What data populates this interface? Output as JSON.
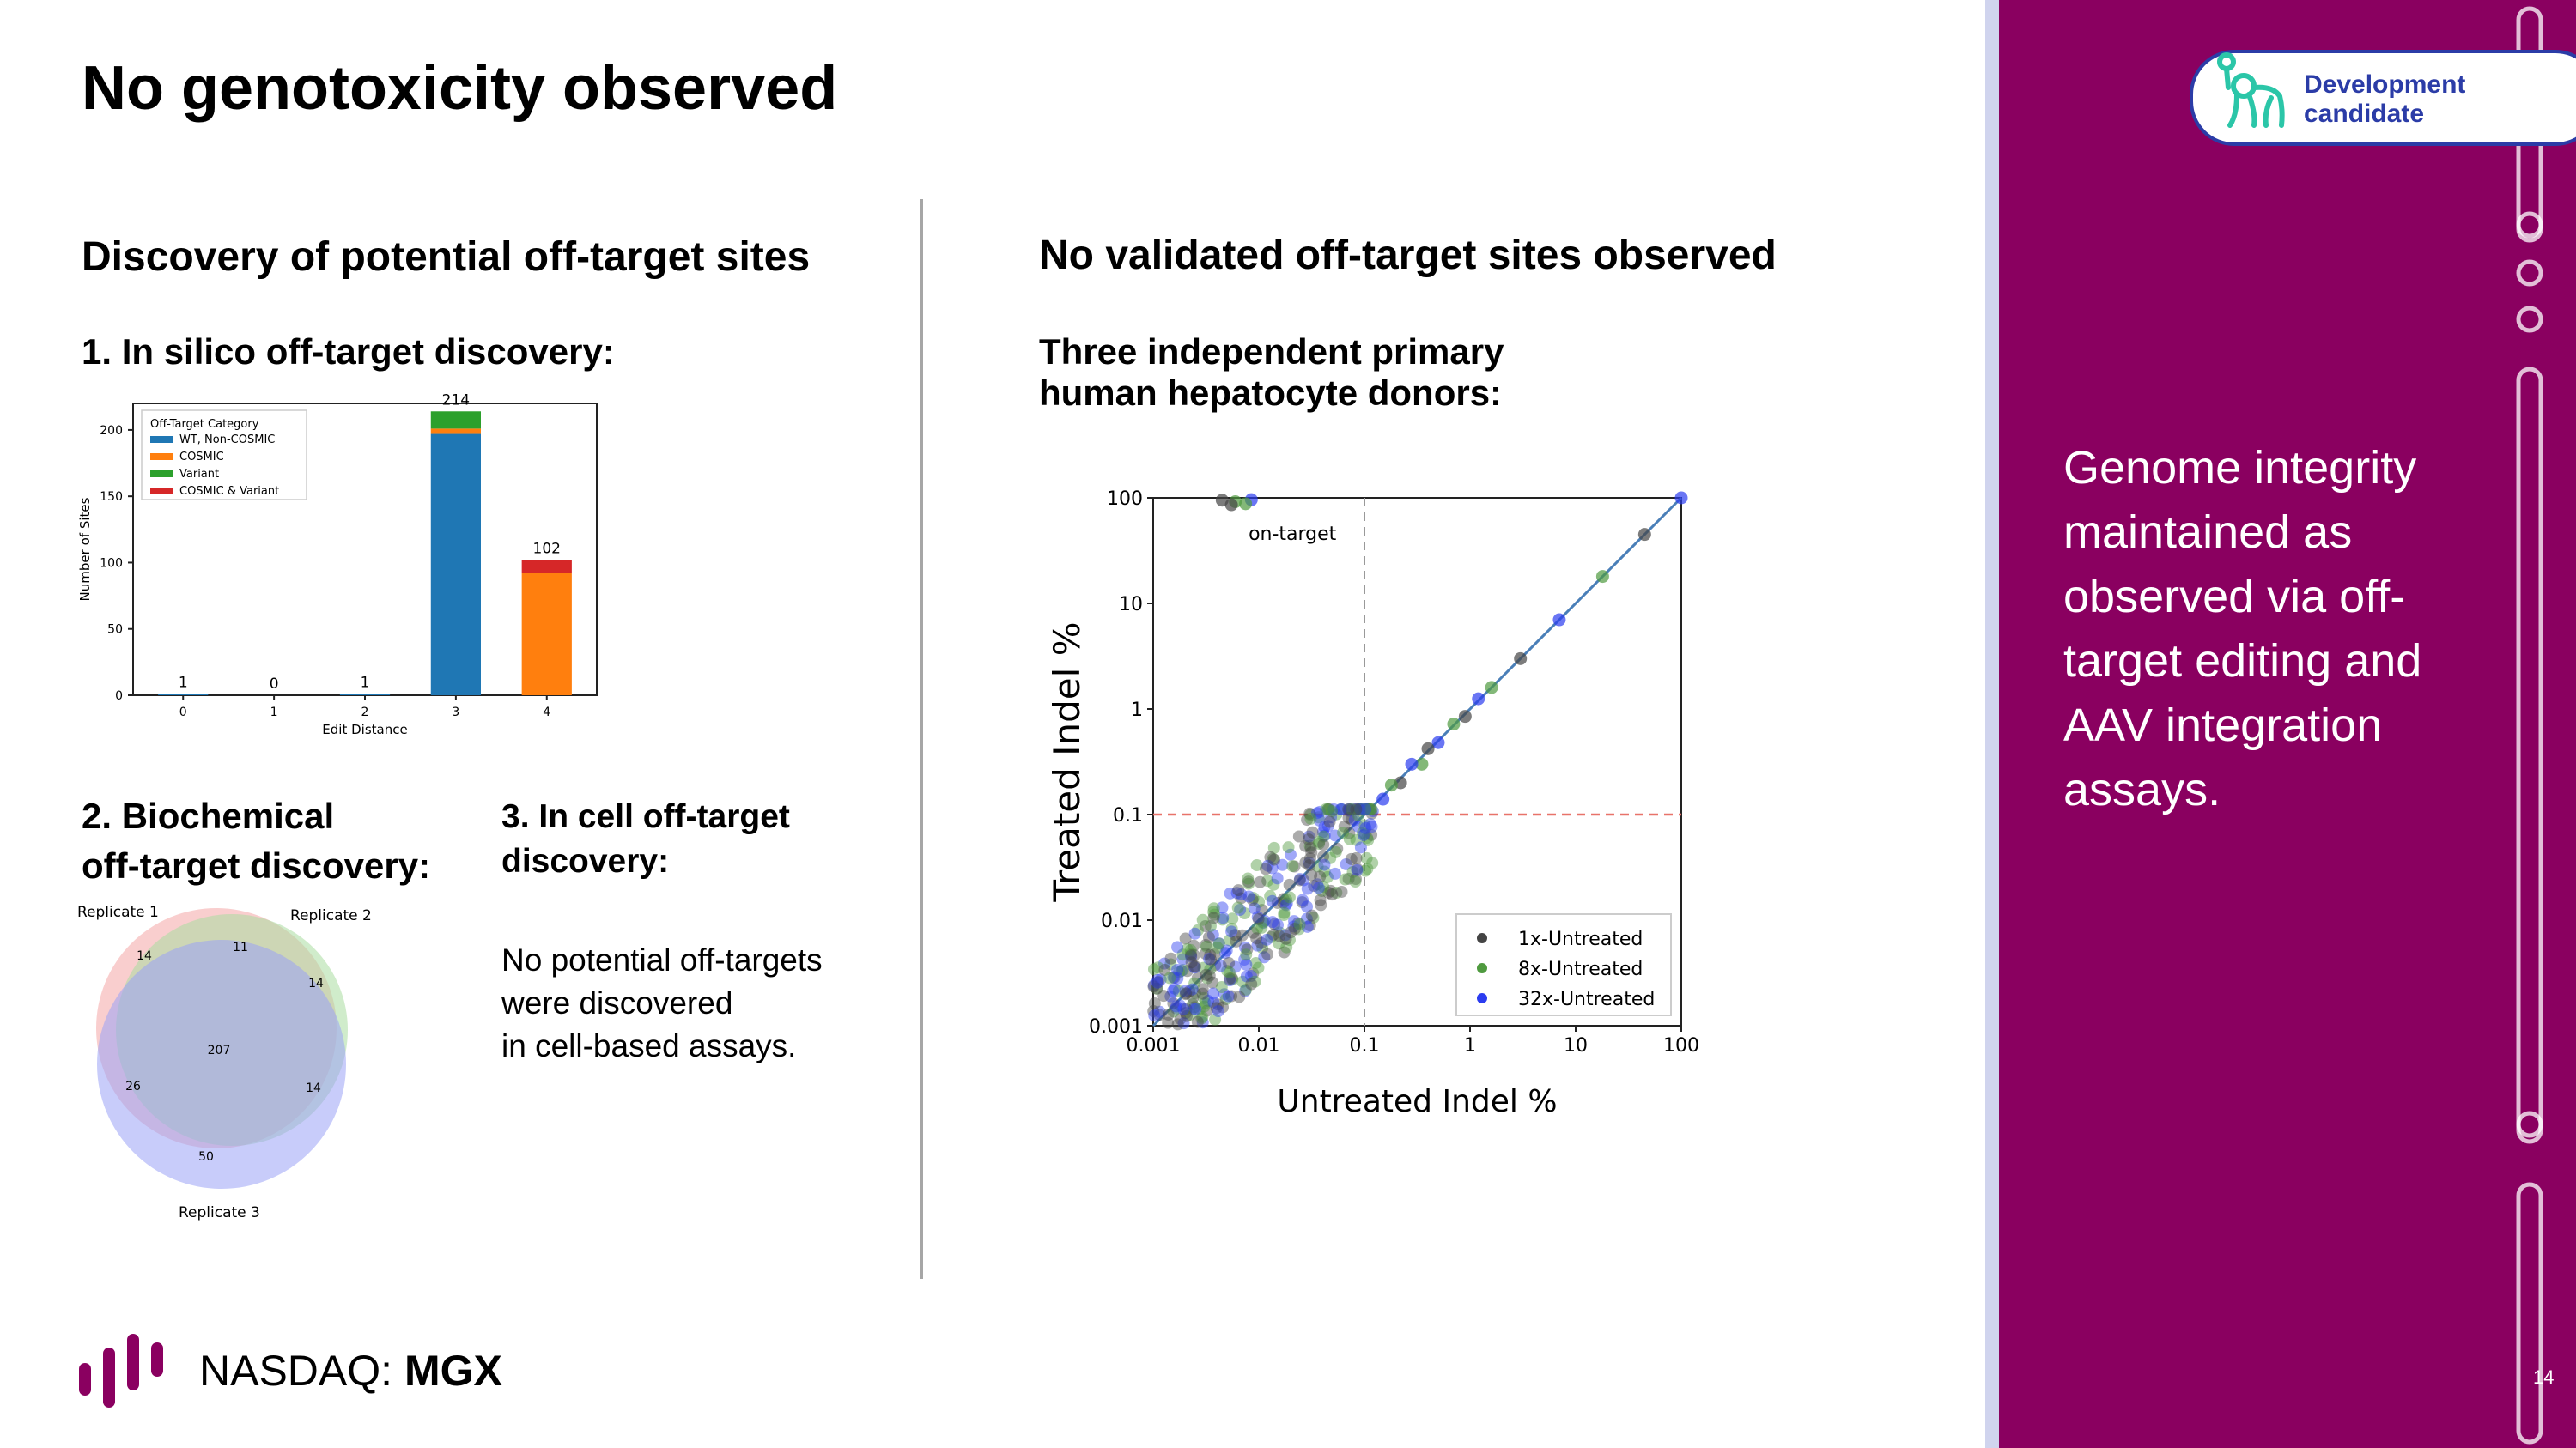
{
  "slide": {
    "title": "No genotoxicity observed",
    "page_number": "14"
  },
  "left": {
    "heading": "Discovery of potential off-target sites",
    "step1": "1. In silico off-target discovery:",
    "step2_line1": "2. Biochemical",
    "step2_line2": "off-target discovery:",
    "step3_line1": "3. In cell off-target",
    "step3_line2": "discovery:",
    "step3_body": [
      "No potential off-targets",
      "were discovered",
      "in cell-based assays."
    ]
  },
  "right": {
    "heading": "No validated off-target sites observed",
    "subheading_line1": "Three independent primary",
    "subheading_line2": "human hepatocyte donors:"
  },
  "sidebar": {
    "badge_line1": "Development",
    "badge_line2": "candidate",
    "message": [
      "Genome integrity",
      "maintained as",
      "observed via off-",
      "target editing and",
      "AAV integration",
      "assays."
    ],
    "panel_color": "#8a0060"
  },
  "footer": {
    "exchange": "NASDAQ: ",
    "ticker": "MGX"
  },
  "chart_data": [
    {
      "type": "bar",
      "stacked": true,
      "xlabel": "Edit Distance",
      "ylabel": "Number of Sites",
      "ylim": [
        0,
        220
      ],
      "yticks": [
        0,
        50,
        100,
        150,
        200
      ],
      "categories": [
        "0",
        "1",
        "2",
        "3",
        "4"
      ],
      "legend_title": "Off-Target Category",
      "legend_position": "top-left",
      "series": [
        {
          "name": "WT, Non-COSMIC",
          "color": "#1f77b4",
          "values": [
            1,
            0,
            1,
            197,
            0
          ]
        },
        {
          "name": "COSMIC",
          "color": "#ff7f0e",
          "values": [
            0,
            0,
            0,
            4,
            92
          ]
        },
        {
          "name": "Variant",
          "color": "#2ca02c",
          "values": [
            0,
            0,
            0,
            13,
            0
          ]
        },
        {
          "name": "COSMIC & Variant",
          "color": "#d62728",
          "values": [
            0,
            0,
            0,
            0,
            10
          ]
        }
      ],
      "totals": [
        "1",
        "0",
        "1",
        "214",
        "102"
      ]
    },
    {
      "type": "venn",
      "sets": [
        {
          "name": "Replicate 1",
          "color": "#f4a6a6"
        },
        {
          "name": "Replicate 2",
          "color": "#a9dca0"
        },
        {
          "name": "Replicate 3",
          "color": "#9aa3f5"
        }
      ],
      "regions": [
        {
          "sets": [
            "Replicate 1"
          ],
          "value": "14"
        },
        {
          "sets": [
            "Replicate 1",
            "Replicate 2"
          ],
          "value": "11"
        },
        {
          "sets": [
            "Replicate 2"
          ],
          "value": "14"
        },
        {
          "sets": [
            "Replicate 1",
            "Replicate 2",
            "Replicate 3"
          ],
          "value": "207"
        },
        {
          "sets": [
            "Replicate 1",
            "Replicate 3"
          ],
          "value": "26"
        },
        {
          "sets": [
            "Replicate 2",
            "Replicate 3"
          ],
          "value": "14"
        },
        {
          "sets": [
            "Replicate 3"
          ],
          "value": "50"
        }
      ]
    },
    {
      "type": "scatter",
      "xscale": "log",
      "yscale": "log",
      "xlabel": "Untreated Indel %",
      "ylabel": "Treated Indel %",
      "xlim": [
        0.001,
        100
      ],
      "ylim": [
        0.001,
        100
      ],
      "ticks": [
        "0.001",
        "0.01",
        "0.1",
        "1",
        "10",
        "100"
      ],
      "tick_values": [
        0.001,
        0.01,
        0.1,
        1,
        10,
        100
      ],
      "threshold_x": 0.1,
      "threshold_y": 0.1,
      "identity_line": true,
      "annotation": "on-target",
      "legend_position": "bottom-right",
      "series": [
        {
          "name": "1x-Untreated",
          "color": "#444444"
        },
        {
          "name": "8x-Untreated",
          "color": "#4f9a3f"
        },
        {
          "name": "32x-Untreated",
          "color": "#2b3cf0"
        }
      ],
      "points": [
        [
          0.0045,
          95
        ],
        [
          0.006,
          92
        ],
        [
          0.0085,
          96
        ],
        [
          0.0055,
          86
        ],
        [
          0.0075,
          88
        ],
        [
          100,
          100
        ],
        [
          45,
          45
        ],
        [
          18,
          18
        ],
        [
          7,
          7
        ],
        [
          3,
          3
        ],
        [
          1.6,
          1.6
        ],
        [
          1.2,
          1.25
        ],
        [
          0.9,
          0.85
        ],
        [
          0.7,
          0.72
        ],
        [
          0.5,
          0.48
        ],
        [
          0.4,
          0.42
        ],
        [
          0.35,
          0.3
        ],
        [
          0.28,
          0.3
        ],
        [
          0.22,
          0.2
        ],
        [
          0.18,
          0.19
        ],
        [
          0.15,
          0.14
        ]
      ]
    }
  ]
}
